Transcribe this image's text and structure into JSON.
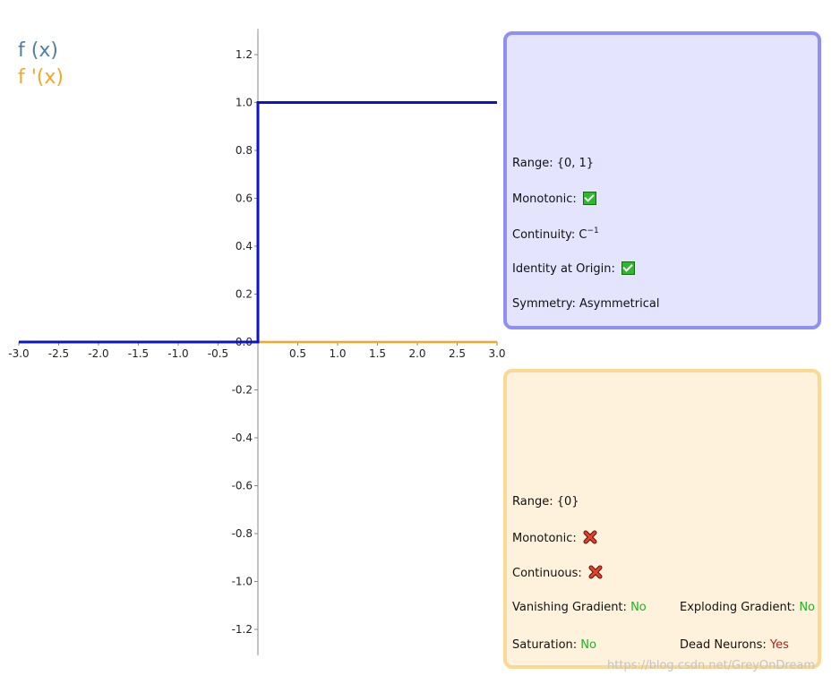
{
  "legend": {
    "function_label": "f (x)",
    "derivative_label": "f '(x)",
    "function_color": "#4f7ea3",
    "derivative_color": "#f5a623"
  },
  "chart_data": {
    "type": "line",
    "xlim": [
      -3.0,
      3.0
    ],
    "ylim": [
      -1.3,
      1.3
    ],
    "x_ticks": [
      -3.0,
      -2.5,
      -2.0,
      -1.5,
      -1.0,
      -0.5,
      0.5,
      1.0,
      1.5,
      2.0,
      2.5,
      3.0
    ],
    "y_ticks": [
      1.2,
      1.0,
      0.8,
      0.6,
      0.4,
      0.2,
      0.0,
      -0.2,
      -0.4,
      -0.6,
      -0.8,
      -1.0,
      -1.2
    ],
    "x_tick_labels": [
      "-3.0",
      "-2.5",
      "-2.0",
      "-1.5",
      "-1.0",
      "-0.5",
      "0.5",
      "1.0",
      "1.5",
      "2.0",
      "2.5",
      "3.0"
    ],
    "y_tick_labels": [
      "1.2",
      "1.0",
      "0.8",
      "0.6",
      "0.4",
      "0.2",
      "0.0",
      "-0.2",
      "-0.4",
      "-0.6",
      "-0.8",
      "-1.0",
      "-1.2"
    ],
    "series": [
      {
        "key": "f",
        "color": "#0a14c8",
        "x": [
          -3.0,
          0.0,
          0.0,
          3.0
        ],
        "y": [
          0.0,
          0.0,
          1.0,
          1.0
        ]
      },
      {
        "key": "df",
        "color": "#f5a623",
        "x": [
          -3.0,
          3.0
        ],
        "y": [
          0.0,
          0.0
        ]
      }
    ]
  },
  "function_panel": {
    "range": "Range: {0, 1}",
    "monotonic_label": "Monotonic:",
    "continuity_label": "Continuity: C",
    "continuity_sup": "−1",
    "identity_label": "Identity at Origin:",
    "symmetry": "Symmetry: Asymmetrical"
  },
  "derivative_panel": {
    "range": "Range: {0}",
    "monotonic_label": "Monotonic:",
    "continuous_label": "Continuous:",
    "vanishing_label": "Vanishing Gradient:",
    "vanishing_value": "No",
    "exploding_label": "Exploding Gradient:",
    "exploding_value": "No",
    "saturation_label": "Saturation:",
    "saturation_value": "No",
    "dead_label": "Dead Neurons:",
    "dead_value": "Yes"
  },
  "watermark": "https://blog.csdn.net/GreyOnDream"
}
